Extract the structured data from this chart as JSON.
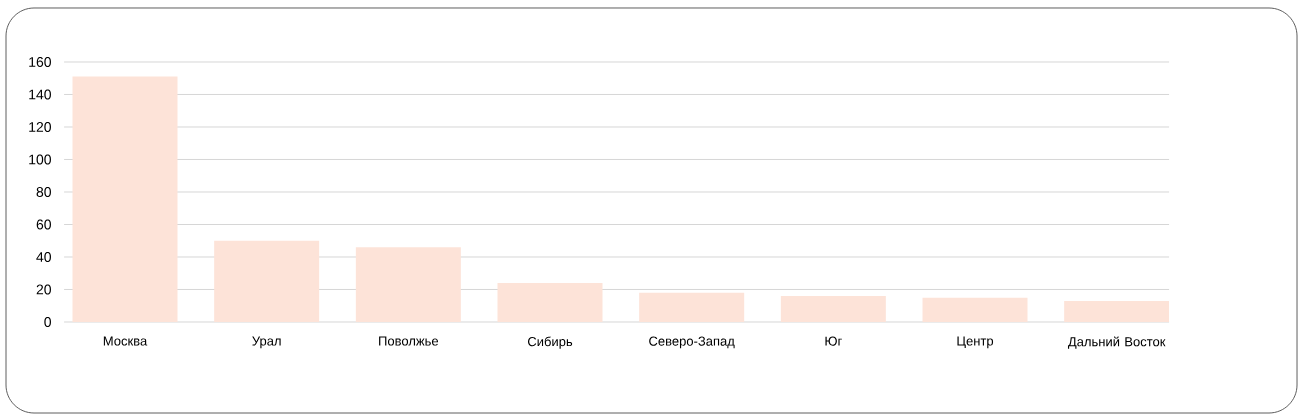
{
  "chart_data": {
    "type": "bar",
    "categories": [
      "Москва",
      "Урал",
      "Поволжье",
      "Сибирь",
      "Северо-Запад",
      "Юг",
      "Центр",
      "Дальний Восток"
    ],
    "values": [
      151,
      50,
      46,
      24,
      18,
      16,
      15,
      13
    ],
    "color": "#fde3d8",
    "ylim": [
      0,
      160
    ],
    "yticks": [
      0,
      20,
      40,
      60,
      80,
      100,
      120,
      140,
      160
    ],
    "grid": "y"
  }
}
